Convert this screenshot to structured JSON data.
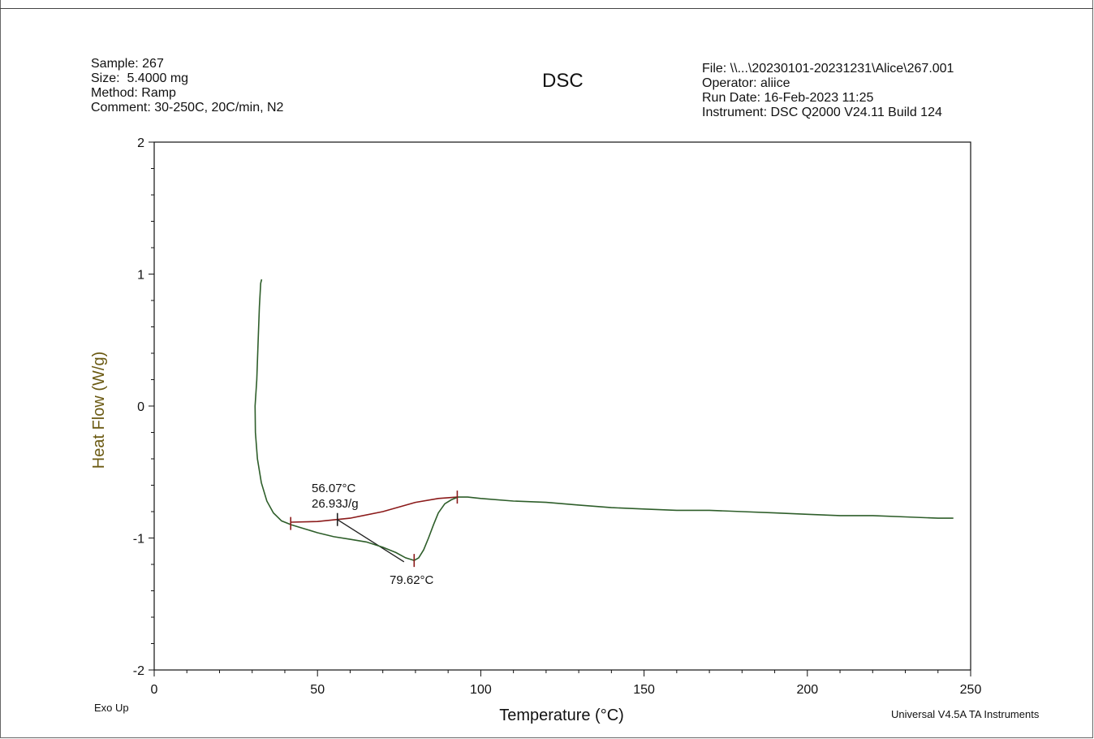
{
  "header": {
    "sample": "Sample: 267",
    "size": "Size:  5.4000 mg",
    "method": "Method: Ramp",
    "comment": "Comment: 30-250C, 20C/min, N2",
    "title": "DSC",
    "file": "File: \\\\...\\20230101-20231231\\Alice\\267.001",
    "operator": "Operator: aliice",
    "run_date": "Run Date: 16-Feb-2023 11:25",
    "instrument": "Instrument: DSC Q2000 V24.11 Build 124"
  },
  "footer": {
    "exo": "Exo Up",
    "vendor": "Universal V4.5A TA Instruments"
  },
  "colors": {
    "curve": "#2e5e2a",
    "curve_peak": "#b9a24a",
    "baseline": "#8b1a1a",
    "tangent": "#222222",
    "axis": "#111111",
    "ylabel": "#6b5a12"
  },
  "chart_data": {
    "type": "line",
    "title": "DSC",
    "xlabel": "Temperature (°C)",
    "ylabel": "Heat Flow (W/g)",
    "xlim": [
      0,
      250
    ],
    "ylim": [
      -2,
      2
    ],
    "x_ticks": [
      0,
      50,
      100,
      150,
      200,
      250
    ],
    "y_ticks": [
      -2,
      -1,
      0,
      1,
      2
    ],
    "grid": false,
    "series": [
      {
        "points": [
          [
            32.9,
            0.96
          ],
          [
            32.6,
            0.93
          ],
          [
            32.2,
            0.75
          ],
          [
            31.8,
            0.48
          ],
          [
            31.4,
            0.2
          ],
          [
            30.9,
            0.0
          ],
          [
            31.0,
            -0.2
          ],
          [
            31.6,
            -0.4
          ],
          [
            32.8,
            -0.58
          ],
          [
            34.5,
            -0.72
          ],
          [
            36.5,
            -0.81
          ],
          [
            39.0,
            -0.87
          ],
          [
            42.0,
            -0.9
          ],
          [
            46.0,
            -0.93
          ],
          [
            50.0,
            -0.96
          ],
          [
            55.0,
            -0.99
          ],
          [
            60.0,
            -1.01
          ],
          [
            65.0,
            -1.03
          ],
          [
            70.0,
            -1.07
          ],
          [
            74.0,
            -1.11
          ],
          [
            77.0,
            -1.15
          ],
          [
            79.6,
            -1.17
          ],
          [
            81.0,
            -1.15
          ],
          [
            82.5,
            -1.09
          ],
          [
            84.0,
            -1.0
          ],
          [
            85.5,
            -0.9
          ],
          [
            87.0,
            -0.81
          ],
          [
            89.0,
            -0.74
          ],
          [
            91.0,
            -0.71
          ],
          [
            93.0,
            -0.69
          ],
          [
            96.0,
            -0.69
          ],
          [
            100.0,
            -0.7
          ],
          [
            110.0,
            -0.72
          ],
          [
            120.0,
            -0.73
          ],
          [
            130.0,
            -0.75
          ],
          [
            140.0,
            -0.77
          ],
          [
            150.0,
            -0.78
          ],
          [
            160.0,
            -0.79
          ],
          [
            170.0,
            -0.79
          ],
          [
            180.0,
            -0.8
          ],
          [
            190.0,
            -0.81
          ],
          [
            200.0,
            -0.82
          ],
          [
            210.0,
            -0.83
          ],
          [
            220.0,
            -0.83
          ],
          [
            230.0,
            -0.84
          ],
          [
            240.0,
            -0.85
          ],
          [
            244.7,
            -0.85
          ]
        ]
      }
    ],
    "integration_baseline": [
      [
        41.8,
        -0.88
      ],
      [
        50.0,
        -0.875
      ],
      [
        60.0,
        -0.85
      ],
      [
        70.0,
        -0.8
      ],
      [
        80.0,
        -0.73
      ],
      [
        87.0,
        -0.7
      ],
      [
        92.8,
        -0.69
      ]
    ],
    "tangent_line": [
      [
        56.1,
        -0.86
      ],
      [
        76.5,
        -1.18
      ]
    ],
    "markers": [
      {
        "x": 41.8,
        "y": -0.89,
        "color": "baseline"
      },
      {
        "x": 56.1,
        "y": -0.86,
        "color": "tangent"
      },
      {
        "x": 79.6,
        "y": -1.17,
        "color": "baseline"
      },
      {
        "x": 92.8,
        "y": -0.69,
        "color": "baseline"
      }
    ],
    "annotations": [
      {
        "text": "56.07°C",
        "x": 56.07,
        "y": -0.86
      },
      {
        "text": "26.93J/g",
        "x": 56.07,
        "y": -0.86
      },
      {
        "text": "79.62°C",
        "x": 79.62,
        "y": -1.17
      }
    ]
  }
}
